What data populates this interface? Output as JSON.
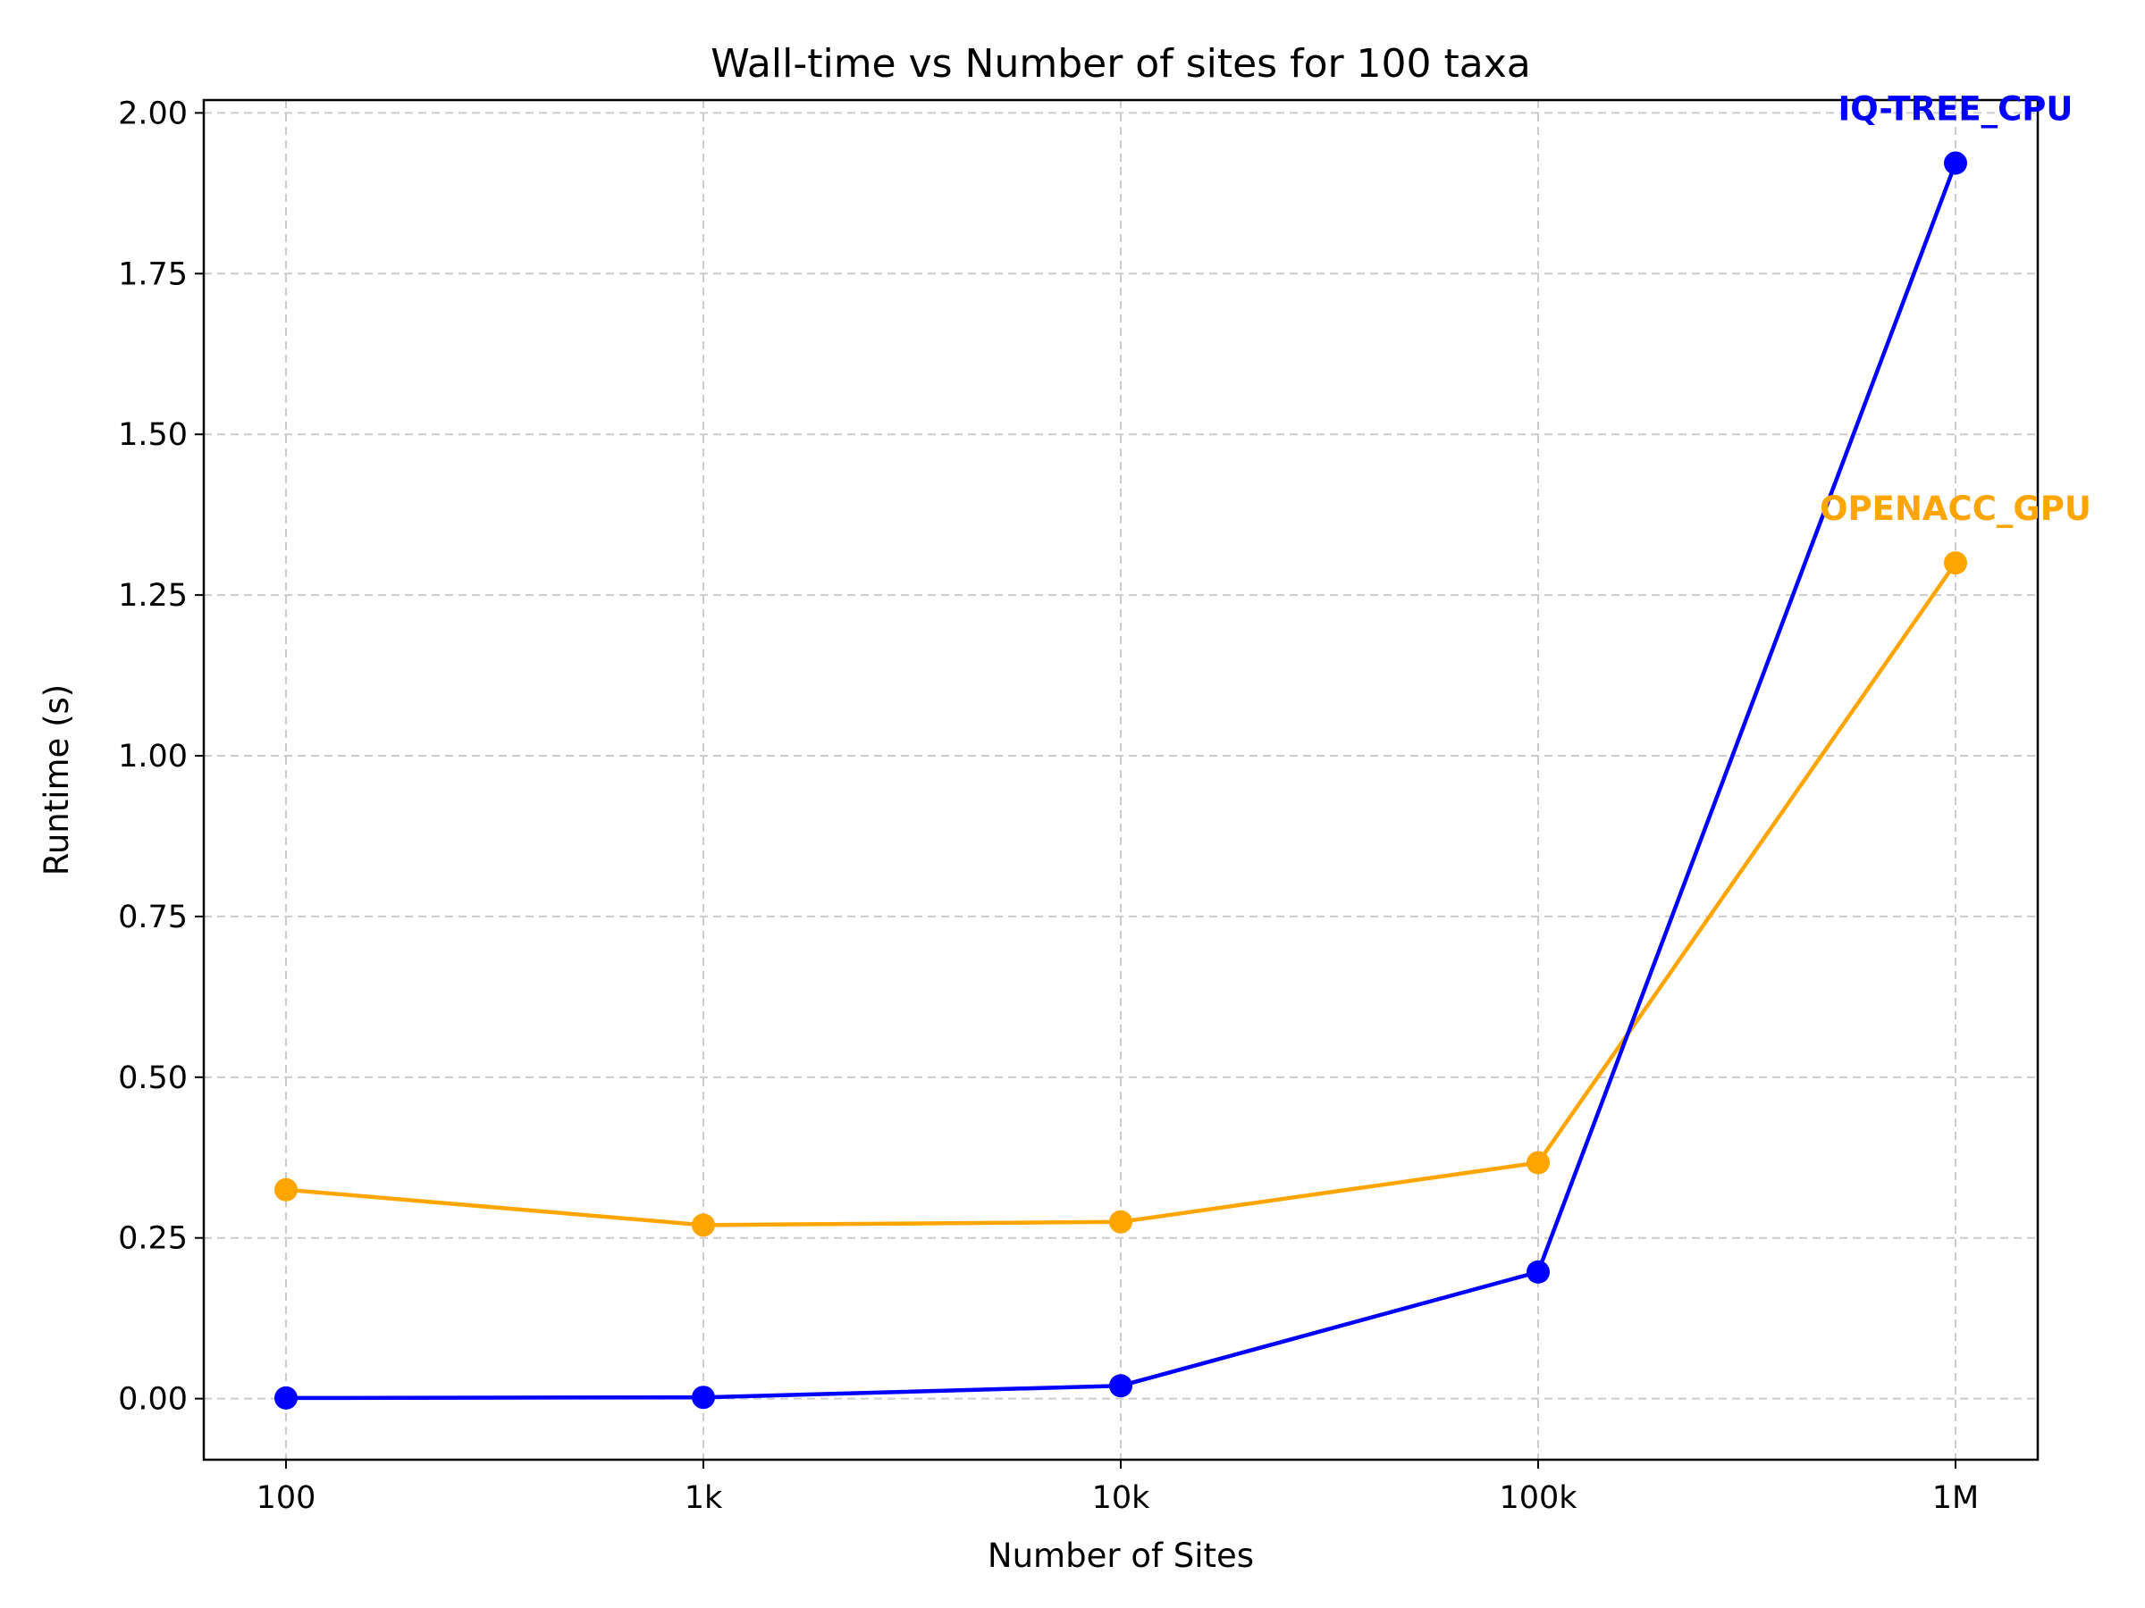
{
  "chart_data": {
    "type": "line",
    "title": "Wall-time vs Number of sites for 100 taxa",
    "xlabel": "Number of Sites",
    "ylabel": "Runtime (s)",
    "categories": [
      "100",
      "1k",
      "10k",
      "100k",
      "1M"
    ],
    "ylim": [
      -0.095,
      2.02
    ],
    "yticks": [
      "0.00",
      "0.25",
      "0.50",
      "0.75",
      "1.00",
      "1.25",
      "1.50",
      "1.75",
      "2.00"
    ],
    "grid": true,
    "series": [
      {
        "name": "IQ-TREE_CPU",
        "color": "#0000ff",
        "values": [
          0.001,
          0.002,
          0.02,
          0.197,
          1.922
        ]
      },
      {
        "name": "OPENACC_GPU",
        "color": "#ffa500",
        "values": [
          0.325,
          0.27,
          0.275,
          0.367,
          1.3
        ]
      }
    ]
  }
}
